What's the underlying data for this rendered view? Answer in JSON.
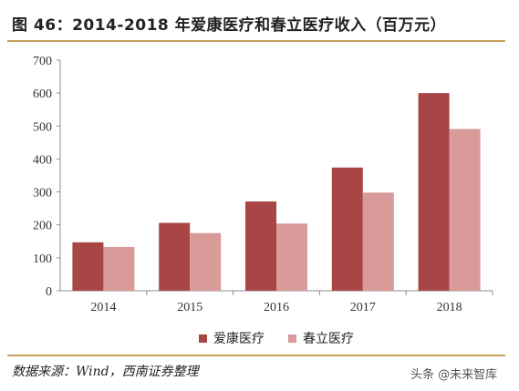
{
  "figure": {
    "title": "图 46：2014-2018 年爱康医疗和春立医疗收入（百万元）",
    "source": "数据来源：Wind，西南证券整理",
    "watermark": "头条 @未来智库",
    "accent_color": "#c9a25c"
  },
  "chart_data": {
    "type": "bar",
    "categories": [
      "2014",
      "2015",
      "2016",
      "2017",
      "2018"
    ],
    "series": [
      {
        "name": "爱康医疗",
        "values": [
          147,
          206,
          271,
          374,
          600
        ],
        "color": "#a84545"
      },
      {
        "name": "春立医疗",
        "values": [
          133,
          175,
          204,
          298,
          491
        ],
        "color": "#d99a9a"
      }
    ],
    "yticks": [
      0,
      100,
      200,
      300,
      400,
      500,
      600,
      700
    ],
    "ylim": [
      0,
      700
    ],
    "grid": false,
    "legend_position": "bottom"
  }
}
